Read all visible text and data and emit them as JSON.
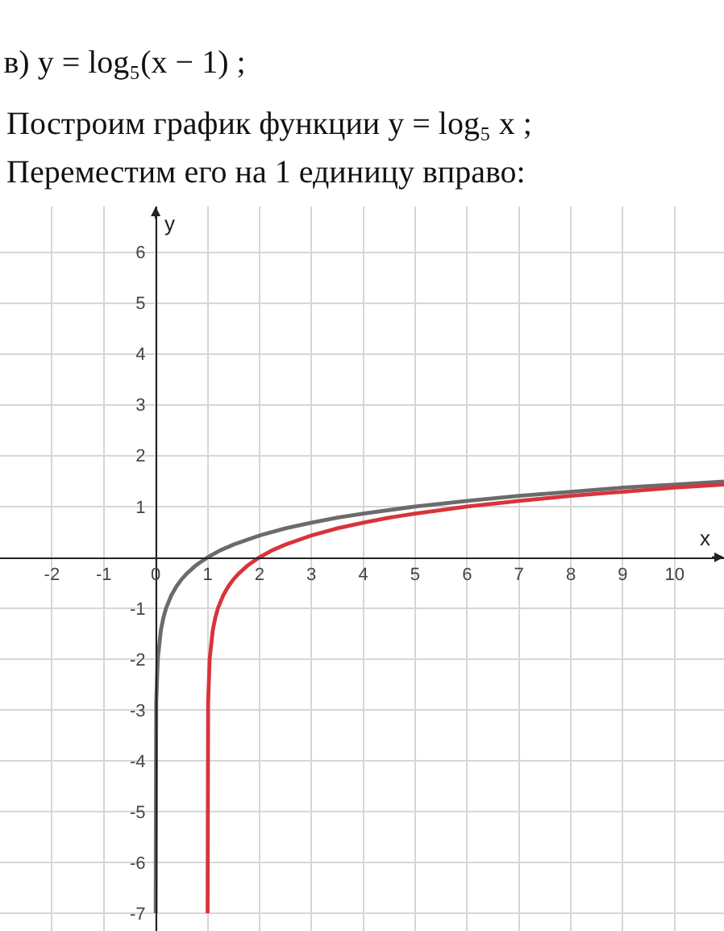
{
  "chart_data": {
    "type": "line",
    "title": "в) y = log₅(x − 1) ;",
    "subtitle": "Построим график функции y = log₅ x ;",
    "annotations": [
      "Переместим его на 1 единицу вправо:"
    ],
    "xlabel": "x",
    "ylabel": "y",
    "xlim": [
      -3,
      10.95
    ],
    "ylim": [
      -7.35,
      6.9
    ],
    "xticks": [
      -2,
      -1,
      0,
      1,
      2,
      3,
      4,
      5,
      6,
      7,
      8,
      9,
      10
    ],
    "yticks": [
      -7,
      -6,
      -5,
      -4,
      -3,
      -2,
      -1,
      1,
      2,
      3,
      4,
      5,
      6
    ],
    "grid": true,
    "series": [
      {
        "color": "#6b6b6b",
        "x": [
          0,
          0.01,
          0.04,
          0.1,
          0.15,
          0.2,
          0.3,
          0.4,
          0.5,
          0.6,
          0.75,
          0.8,
          1,
          1.25,
          1.5,
          2,
          2.5,
          3,
          3.5,
          4,
          5,
          6,
          7,
          8,
          9,
          10,
          10.95
        ],
        "values": [
          -7,
          -2.86,
          -2,
          -1.43,
          -1.18,
          -1,
          -0.75,
          -0.57,
          -0.43,
          -0.32,
          -0.18,
          -0.14,
          0,
          0.14,
          0.25,
          0.43,
          0.57,
          0.68,
          0.78,
          0.86,
          1,
          1.11,
          1.21,
          1.29,
          1.37,
          1.43,
          1.49
        ]
      },
      {
        "color": "#d8343c",
        "x": [
          1,
          1.01,
          1.04,
          1.1,
          1.15,
          1.2,
          1.3,
          1.4,
          1.5,
          1.6,
          1.75,
          1.8,
          2,
          2.25,
          2.5,
          3,
          3.5,
          4,
          4.5,
          5,
          6,
          7,
          8,
          9,
          10,
          10.95
        ],
        "values": [
          -7,
          -2.86,
          -2,
          -1.43,
          -1.18,
          -1,
          -0.75,
          -0.57,
          -0.43,
          -0.32,
          -0.18,
          -0.14,
          0,
          0.14,
          0.25,
          0.43,
          0.57,
          0.68,
          0.78,
          0.86,
          1,
          1.11,
          1.21,
          1.29,
          1.37,
          1.43
        ]
      }
    ]
  }
}
